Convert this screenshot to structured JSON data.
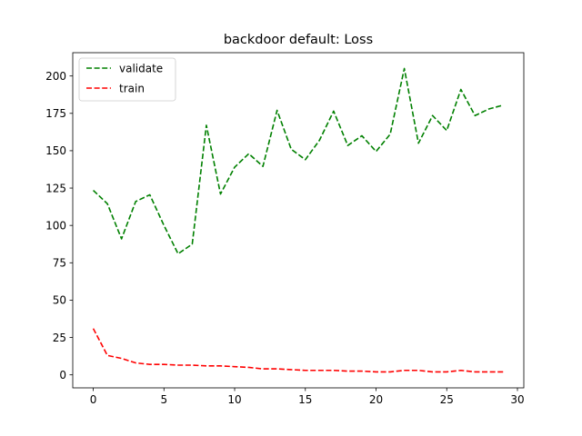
{
  "chart_data": {
    "type": "line",
    "title": "backdoor default: Loss",
    "xlabel": "",
    "ylabel": "",
    "x": [
      0,
      1,
      2,
      3,
      4,
      5,
      6,
      7,
      8,
      9,
      10,
      11,
      12,
      13,
      14,
      15,
      16,
      17,
      18,
      19,
      20,
      21,
      22,
      23,
      24,
      25,
      26,
      27,
      28,
      29
    ],
    "xlim": [
      -1.45,
      30.45
    ],
    "ylim": [
      -8.7,
      215.6
    ],
    "xticks": [
      0,
      5,
      10,
      15,
      20,
      25,
      30
    ],
    "yticks": [
      0,
      25,
      50,
      75,
      100,
      125,
      150,
      175,
      200
    ],
    "grid": false,
    "legend_position": "upper left",
    "series": [
      {
        "name": "validate",
        "color": "#008000",
        "line_style": "dashed",
        "values": [
          123.5,
          114.5,
          91,
          116,
          120.5,
          100,
          81,
          87.5,
          167,
          121,
          139,
          148,
          139.5,
          177,
          151,
          144,
          157,
          176.5,
          153.5,
          160,
          149.5,
          161,
          205,
          155,
          173.5,
          163.5,
          191,
          173.5,
          178,
          180.5
        ]
      },
      {
        "name": "train",
        "color": "#ff0000",
        "line_style": "dashed",
        "values": [
          31,
          13,
          11,
          8,
          7,
          7,
          6.5,
          6.5,
          6,
          6,
          5.5,
          5,
          4,
          4,
          3.5,
          3,
          3,
          3,
          2.5,
          2.5,
          2,
          2,
          3,
          3,
          2,
          2,
          3,
          2,
          2,
          2
        ]
      }
    ]
  }
}
